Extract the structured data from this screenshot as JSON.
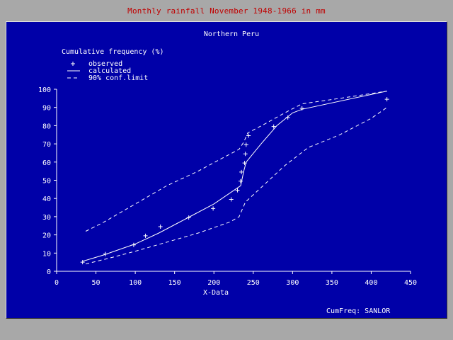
{
  "window": {
    "title": "Monthly rainfall November 1948-1966 in mm"
  },
  "footer": {
    "label": "CumFreq: SANLOR"
  },
  "colors": {
    "background": "#a8a8a8",
    "panel": "#0000a8",
    "title_text": "#c00000",
    "plot_ink": "#ffffff"
  },
  "chart_data": {
    "type": "line",
    "title": "Northern Peru",
    "ylabel": "Cumulative frequency (%)",
    "xlabel": "X-Data",
    "xlim": [
      0,
      450
    ],
    "ylim": [
      0,
      100
    ],
    "xticks": [
      0,
      50,
      100,
      150,
      200,
      250,
      300,
      350,
      400,
      450
    ],
    "yticks": [
      0,
      10,
      20,
      30,
      40,
      50,
      60,
      70,
      80,
      90,
      100
    ],
    "grid": false,
    "legend_position": "top-left",
    "legend": [
      {
        "marker": "+",
        "label": "observed"
      },
      {
        "marker": "solid",
        "label": "calculated"
      },
      {
        "marker": "dashed",
        "label": "90% conf.limit"
      }
    ],
    "series": [
      {
        "name": "observed",
        "style": "markers",
        "points": [
          [
            33,
            5
          ],
          [
            62,
            9.5
          ],
          [
            98,
            14.5
          ],
          [
            113,
            19.5
          ],
          [
            132,
            24.5
          ],
          [
            168,
            29.5
          ],
          [
            199,
            34.5
          ],
          [
            222,
            39.5
          ],
          [
            230,
            44.5
          ],
          [
            234,
            49.5
          ],
          [
            235,
            54.5
          ],
          [
            239,
            59.5
          ],
          [
            240,
            64.5
          ],
          [
            241,
            69.5
          ],
          [
            244,
            74.5
          ],
          [
            276,
            79.5
          ],
          [
            294,
            84.5
          ],
          [
            312,
            89.5
          ],
          [
            420,
            94.5
          ]
        ]
      },
      {
        "name": "calculated",
        "style": "solid",
        "points": [
          [
            33,
            5.5
          ],
          [
            60,
            9
          ],
          [
            100,
            15
          ],
          [
            130,
            21
          ],
          [
            165,
            29
          ],
          [
            200,
            37
          ],
          [
            234,
            47
          ],
          [
            238,
            55
          ],
          [
            241,
            60
          ],
          [
            260,
            70
          ],
          [
            280,
            80
          ],
          [
            300,
            87
          ],
          [
            312,
            89
          ],
          [
            420,
            99
          ]
        ]
      },
      {
        "name": "90% conf.limit upper",
        "style": "dashed",
        "points": [
          [
            37,
            22
          ],
          [
            60,
            27
          ],
          [
            100,
            37
          ],
          [
            140,
            47
          ],
          [
            180,
            55
          ],
          [
            210,
            62
          ],
          [
            232,
            67
          ],
          [
            238,
            71
          ],
          [
            243,
            76
          ],
          [
            265,
            81
          ],
          [
            290,
            87
          ],
          [
            312,
            92
          ],
          [
            360,
            95
          ],
          [
            420,
            99
          ]
        ]
      },
      {
        "name": "90% conf.limit lower",
        "style": "dashed",
        "points": [
          [
            37,
            4
          ],
          [
            65,
            7
          ],
          [
            100,
            11
          ],
          [
            140,
            16
          ],
          [
            180,
            21
          ],
          [
            220,
            27
          ],
          [
            232,
            30
          ],
          [
            240,
            38
          ],
          [
            260,
            46
          ],
          [
            290,
            58
          ],
          [
            320,
            68
          ],
          [
            360,
            75
          ],
          [
            400,
            84
          ],
          [
            420,
            90
          ]
        ]
      }
    ]
  }
}
